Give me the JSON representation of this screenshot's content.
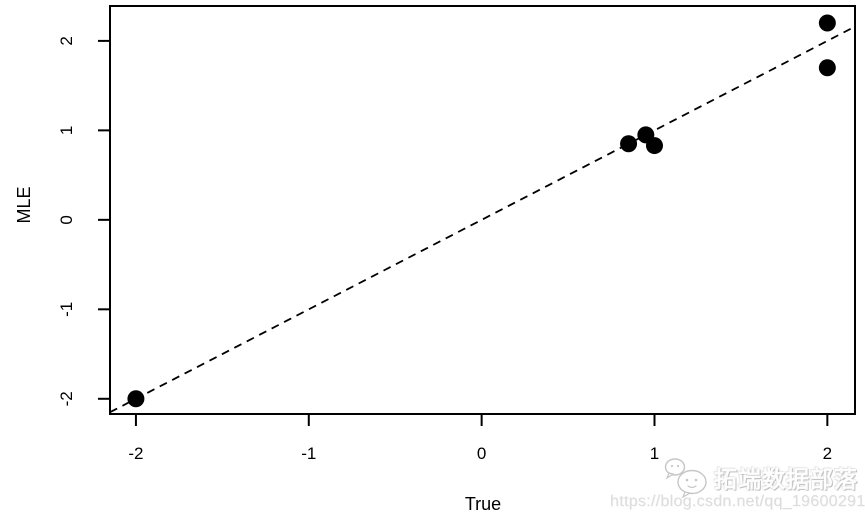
{
  "chart_data": {
    "type": "scatter",
    "title": "",
    "xlabel": "True",
    "ylabel": "MLE",
    "xlim": [
      -2.15,
      2.16
    ],
    "ylim": [
      -2.17,
      2.39
    ],
    "x_ticks": [
      -2,
      -1,
      0,
      1,
      2
    ],
    "y_ticks": [
      -2,
      -1,
      0,
      1,
      2
    ],
    "points": [
      {
        "x": -2.0,
        "y": -2.0
      },
      {
        "x": 0.85,
        "y": 0.85
      },
      {
        "x": 0.95,
        "y": 0.95
      },
      {
        "x": 1.0,
        "y": 0.83
      },
      {
        "x": 2.0,
        "y": 2.2
      },
      {
        "x": 2.0,
        "y": 1.7
      }
    ],
    "identity_line": {
      "slope": 1,
      "intercept": 0,
      "style": "dashed"
    },
    "grid": "off",
    "legend": "none",
    "point_color": "#000000",
    "line_color": "#000000",
    "axis_color": "#000000",
    "background": "#ffffff"
  },
  "watermark": {
    "icon": "wechat-chat-bubbles-icon",
    "brand": "拓端数据部落",
    "url": "https://blog.csdn.net/qq_19600291"
  }
}
